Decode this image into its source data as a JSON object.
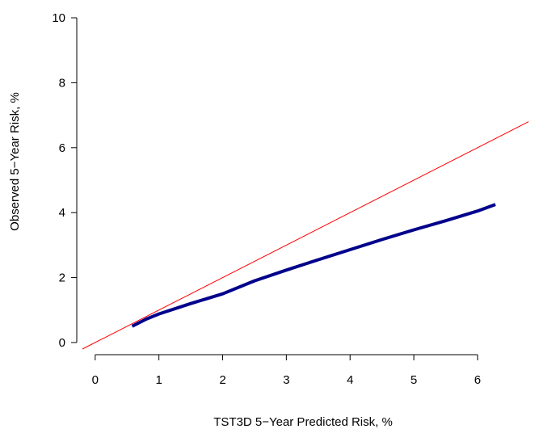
{
  "chart_data": {
    "type": "line",
    "title": "",
    "xlabel": "TST3D 5−Year Predicted Risk, %",
    "ylabel": "Observed 5−Year Risk, %",
    "xlim": [
      -0.2,
      6.8
    ],
    "ylim": [
      -0.2,
      10.1
    ],
    "x_ticks": [
      "0",
      "1",
      "2",
      "3",
      "4",
      "5",
      "6"
    ],
    "y_ticks": [
      "0",
      "2",
      "4",
      "6",
      "8",
      "10"
    ],
    "grid": false,
    "legend": "none",
    "series": [
      {
        "type": "calibration",
        "color": "#00008B",
        "x": [
          0.58,
          0.8,
          1.0,
          1.5,
          2.0,
          2.5,
          3.0,
          3.5,
          4.0,
          4.5,
          5.0,
          5.5,
          6.0,
          6.28
        ],
        "y": [
          0.5,
          0.72,
          0.88,
          1.2,
          1.5,
          1.9,
          2.23,
          2.55,
          2.86,
          3.17,
          3.47,
          3.75,
          4.05,
          4.25
        ]
      },
      {
        "type": "reference",
        "color": "#FF0000",
        "x": [
          -0.2,
          6.8
        ],
        "y": [
          -0.2,
          6.8
        ]
      }
    ]
  }
}
